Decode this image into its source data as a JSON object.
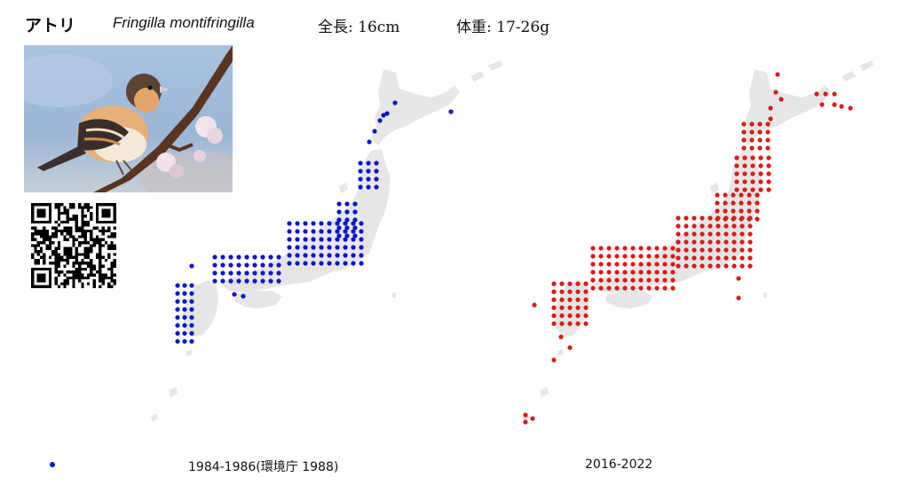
{
  "header": {
    "name_jp": "アトリ",
    "name_scientific": "Fringilla montifringilla",
    "length": "全長: 16cm",
    "weight": "体重: 17-26g"
  },
  "photo": {
    "subject": "brambling-on-cherry-branch"
  },
  "qr_code": {
    "icon": "qr-code-icon"
  },
  "maps": [
    {
      "id": "period-1",
      "label": "1984-1986(環境庁 1988)",
      "dot_color": "#0a16c8"
    },
    {
      "id": "period-2",
      "label": "2016-2022",
      "dot_color": "#d81b1b"
    }
  ],
  "colors": {
    "land": "#e6e6e6",
    "background": "#ffffff"
  }
}
